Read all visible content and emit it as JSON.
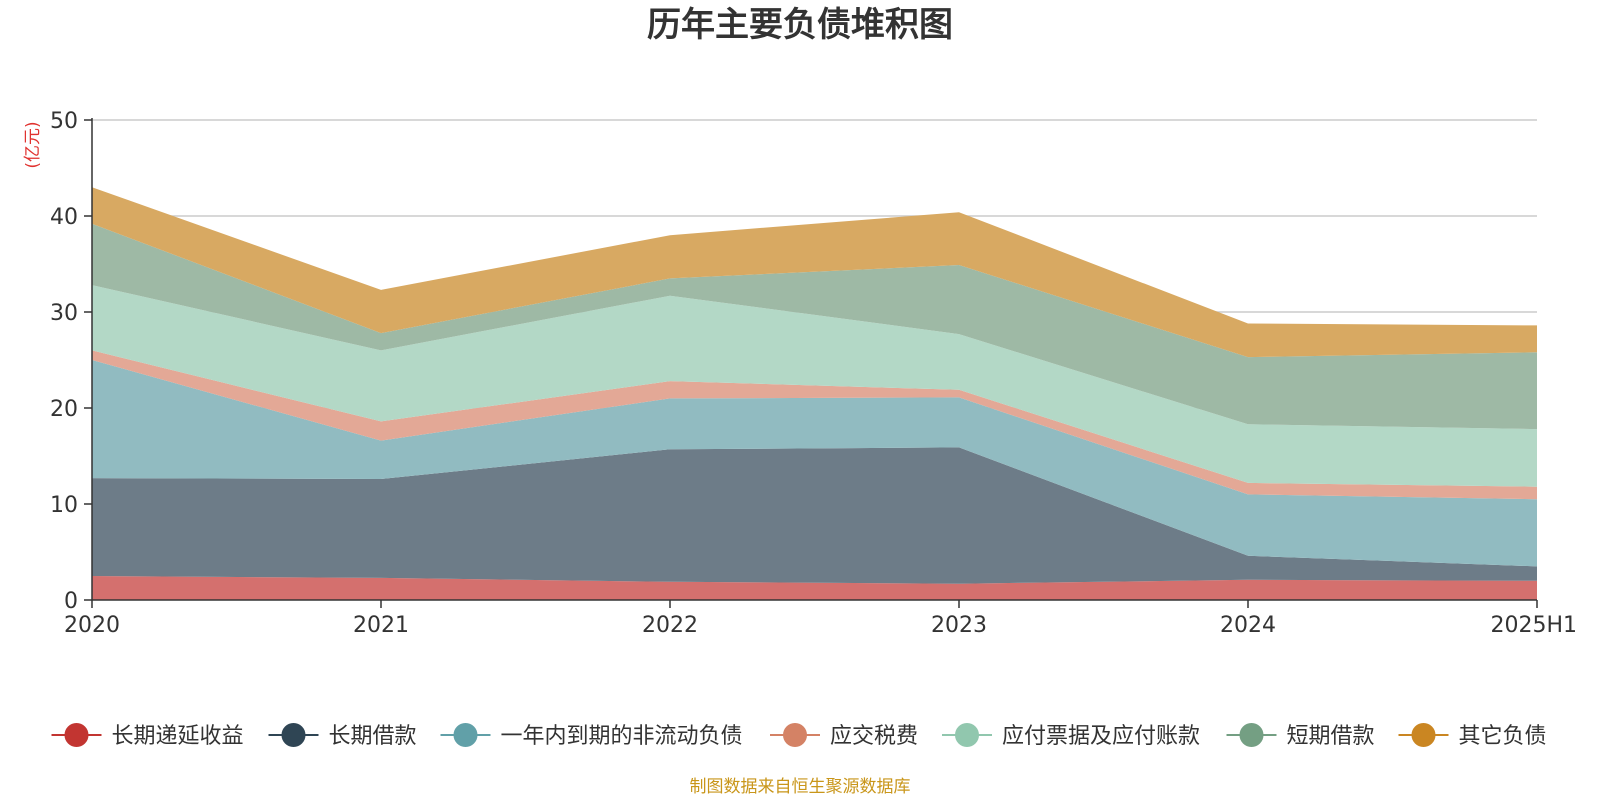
{
  "chart_data": {
    "type": "area",
    "stacked": true,
    "title": "历年主要负债堆积图",
    "unit_label": "(亿元)",
    "categories": [
      "2020",
      "2021",
      "2022",
      "2023",
      "2024",
      "2025H1"
    ],
    "ylim": [
      0,
      50
    ],
    "yticks": [
      "0",
      "10",
      "20",
      "30",
      "40",
      "50"
    ],
    "grid": true,
    "legend_position": "bottom",
    "series": [
      {
        "name": "长期递延收益",
        "values": [
          2.5,
          2.3,
          1.9,
          1.7,
          2.1,
          2.0
        ],
        "color": "#c23531",
        "fill": "#d4706e"
      },
      {
        "name": "长期借款",
        "values": [
          10.2,
          10.3,
          13.8,
          14.2,
          2.5,
          1.5
        ],
        "color": "#2f4554",
        "fill": "#6d7c88"
      },
      {
        "name": "一年内到期的非流动负债",
        "values": [
          12.3,
          4.0,
          5.3,
          5.2,
          6.4,
          7.0
        ],
        "color": "#61a0a8",
        "fill": "#91bbc1"
      },
      {
        "name": "应交税费",
        "values": [
          1.0,
          2.0,
          1.8,
          0.8,
          1.2,
          1.3
        ],
        "color": "#d48265",
        "fill": "#e3a896"
      },
      {
        "name": "应付票据及应付账款",
        "values": [
          6.8,
          7.4,
          8.9,
          5.8,
          6.1,
          6.0
        ],
        "color": "#91c7ae",
        "fill": "#b3d8c6"
      },
      {
        "name": "短期借款",
        "values": [
          6.4,
          1.8,
          1.8,
          7.2,
          7.0,
          8.0
        ],
        "color": "#749f83",
        "fill": "#9eb9a5"
      },
      {
        "name": "其它负债",
        "values": [
          3.8,
          4.5,
          4.5,
          5.5,
          3.5,
          2.8
        ],
        "color": "#ca8622",
        "fill": "#d8a962"
      }
    ],
    "source": "制图数据来自恒生聚源数据库"
  }
}
